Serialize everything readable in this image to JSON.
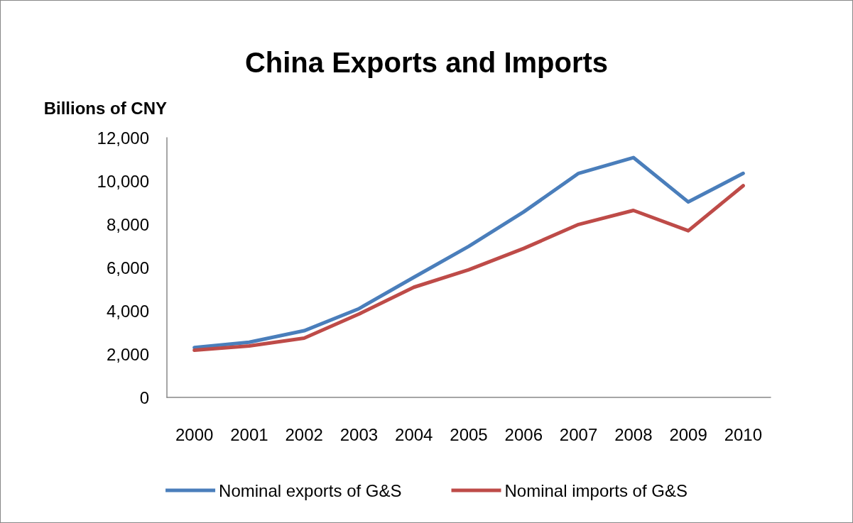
{
  "chart_data": {
    "type": "line",
    "title": "China Exports and Imports",
    "ylabel": "Billions of CNY",
    "categories": [
      "2000",
      "2001",
      "2002",
      "2003",
      "2004",
      "2005",
      "2006",
      "2007",
      "2008",
      "2009",
      "2010"
    ],
    "series": [
      {
        "name": "Nominal exports of G&S",
        "color": "#4a7ebb",
        "values": [
          2300,
          2550,
          3080,
          4100,
          5550,
          6980,
          8570,
          10350,
          11080,
          9030,
          10350
        ]
      },
      {
        "name": "Nominal imports of G&S",
        "color": "#be4b48",
        "values": [
          2180,
          2380,
          2740,
          3850,
          5090,
          5900,
          6880,
          7990,
          8640,
          7700,
          9780
        ]
      }
    ],
    "ylim": [
      0,
      12000
    ],
    "yticks": [
      0,
      {
        "value": 2000,
        "label": "2,000"
      },
      {
        "value": 4000,
        "label": "4,000"
      },
      {
        "value": 6000,
        "label": "6,000"
      },
      {
        "value": 8000,
        "label": "8,000"
      },
      {
        "value": 10000,
        "label": "10,000"
      },
      {
        "value": 12000,
        "label": "12,000"
      }
    ],
    "grid": false,
    "legend": "bottom",
    "marker": "none",
    "line_style": "solid"
  }
}
